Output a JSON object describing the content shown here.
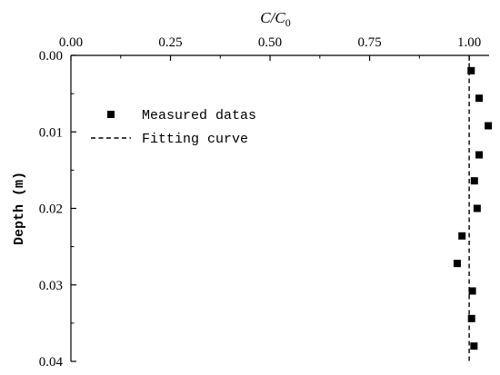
{
  "chart_data": {
    "type": "scatter",
    "xlabel": "C/C",
    "xlabel_sub": "0",
    "ylabel": "Depth (m)",
    "x_axis_position": "top",
    "y_inverted": true,
    "xlim": [
      0,
      1.05
    ],
    "ylim": [
      0,
      0.04
    ],
    "x_ticks": [
      0.0,
      0.25,
      0.5,
      0.75,
      1.0
    ],
    "x_tick_labels": [
      "0.00",
      "0.25",
      "0.50",
      "0.75",
      "1.00"
    ],
    "y_ticks": [
      0.0,
      0.01,
      0.02,
      0.03,
      0.04
    ],
    "y_tick_labels": [
      "0.00",
      "0.01",
      "0.02",
      "0.03",
      "0.04"
    ],
    "grid": false,
    "legend": {
      "placement": "upper-left",
      "entries": [
        {
          "label": "Measured datas",
          "marker": "square"
        },
        {
          "label": "Fitting curve",
          "marker": "dashed-line"
        }
      ]
    },
    "series": [
      {
        "name": "Measured datas",
        "marker": "square",
        "color": "#000000",
        "points": [
          {
            "x": 1.005,
            "y": 0.002
          },
          {
            "x": 1.025,
            "y": 0.0056
          },
          {
            "x": 1.048,
            "y": 0.0092
          },
          {
            "x": 1.025,
            "y": 0.013
          },
          {
            "x": 1.013,
            "y": 0.0164
          },
          {
            "x": 1.02,
            "y": 0.02
          },
          {
            "x": 0.982,
            "y": 0.0236
          },
          {
            "x": 0.97,
            "y": 0.0272
          },
          {
            "x": 1.008,
            "y": 0.0308
          },
          {
            "x": 1.006,
            "y": 0.0344
          },
          {
            "x": 1.012,
            "y": 0.038
          }
        ]
      },
      {
        "name": "Fitting curve",
        "style": "dashed",
        "color": "#000000",
        "points": [
          {
            "x": 1.0,
            "y": 0.0
          },
          {
            "x": 1.0,
            "y": 0.04
          }
        ]
      }
    ]
  }
}
